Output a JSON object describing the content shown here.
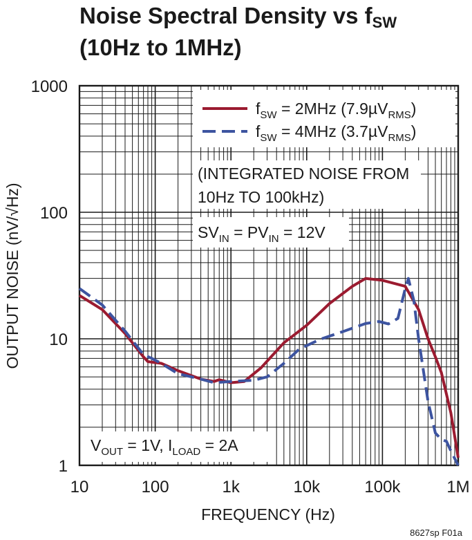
{
  "chart_data": {
    "type": "line",
    "title": "Noise Spectral Density vs f",
    "title_sub": "SW",
    "subtitle": "(10Hz to 1MHz)",
    "xlabel": "FREQUENCY (Hz)",
    "ylabel": "OUTPUT NOISE (nV/√Hz)",
    "x_scale": "log",
    "y_scale": "log",
    "xlim": [
      10,
      1000000
    ],
    "ylim": [
      1,
      1000
    ],
    "x_ticks": [
      {
        "value": 10,
        "label": "10"
      },
      {
        "value": 100,
        "label": "100"
      },
      {
        "value": 1000,
        "label": "1k"
      },
      {
        "value": 10000,
        "label": "10k"
      },
      {
        "value": 100000,
        "label": "100k"
      },
      {
        "value": 1000000,
        "label": "1M"
      }
    ],
    "y_ticks": [
      {
        "value": 1,
        "label": "1"
      },
      {
        "value": 10,
        "label": "10"
      },
      {
        "value": 100,
        "label": "100"
      },
      {
        "value": 1000,
        "label": "1000"
      }
    ],
    "grid": true,
    "legend_position": "top-right",
    "series": [
      {
        "name": "fSW = 2MHz (7.9µVRMS)",
        "legend": {
          "p1": "f",
          "s1": "SW",
          "p2": " = 2MHz (7.9µV",
          "s2": "RMS",
          "p3": ")"
        },
        "color": "#9b1b30",
        "dash": "solid",
        "points": [
          [
            10,
            22
          ],
          [
            20,
            17
          ],
          [
            40,
            11
          ],
          [
            70,
            7.2
          ],
          [
            80,
            6.6
          ],
          [
            120,
            6.4
          ],
          [
            200,
            5.6
          ],
          [
            400,
            4.8
          ],
          [
            600,
            4.6
          ],
          [
            700,
            4.75
          ],
          [
            1000,
            4.5
          ],
          [
            1500,
            4.6
          ],
          [
            2500,
            5.9
          ],
          [
            5000,
            9.3
          ],
          [
            10000,
            12.8
          ],
          [
            20000,
            19
          ],
          [
            40000,
            26
          ],
          [
            60000,
            30
          ],
          [
            100000,
            29
          ],
          [
            200000,
            26
          ],
          [
            300000,
            17
          ],
          [
            400000,
            10
          ],
          [
            500000,
            7.2
          ],
          [
            600000,
            5.4
          ],
          [
            800000,
            2.6
          ],
          [
            1000000,
            1.15
          ]
        ]
      },
      {
        "name": "fSW = 4MHz (3.7µVRMS)",
        "legend": {
          "p1": "f",
          "s1": "SW",
          "p2": " = 4MHz (3.7µV",
          "s2": "RMS",
          "p3": ")"
        },
        "color": "#3d54a0",
        "dash": "dashed",
        "points": [
          [
            10,
            25
          ],
          [
            20,
            18.5
          ],
          [
            40,
            11.5
          ],
          [
            70,
            7.5
          ],
          [
            90,
            7.0
          ],
          [
            120,
            6.4
          ],
          [
            200,
            5.3
          ],
          [
            400,
            4.8
          ],
          [
            600,
            4.5
          ],
          [
            1000,
            4.6
          ],
          [
            2000,
            4.7
          ],
          [
            3000,
            5.0
          ],
          [
            5000,
            6.4
          ],
          [
            8000,
            8.3
          ],
          [
            15000,
            9.9
          ],
          [
            30000,
            11.4
          ],
          [
            60000,
            13.2
          ],
          [
            90000,
            13.7
          ],
          [
            120000,
            13.1
          ],
          [
            160000,
            14.5
          ],
          [
            200000,
            25
          ],
          [
            220000,
            30
          ],
          [
            260000,
            20
          ],
          [
            300000,
            10
          ],
          [
            400000,
            3.2
          ],
          [
            500000,
            1.8
          ],
          [
            600000,
            1.6
          ],
          [
            700000,
            1.55
          ],
          [
            800000,
            1.3
          ],
          [
            1000000,
            1.0
          ]
        ]
      }
    ],
    "annotations": {
      "integrated_line1": "(INTEGRATED NOISE FROM",
      "integrated_line2": "10Hz TO 100kHz)",
      "supply": {
        "p1": "SV",
        "s1": "IN",
        "p2": " = PV",
        "s2": "IN",
        "p3": " = 12V"
      },
      "conditions": {
        "p1": "V",
        "s1": "OUT",
        "p2": " = 1V, I",
        "s2": "LOAD",
        "p3": " = 2A"
      }
    },
    "figure_id": "8627sp F01a"
  }
}
